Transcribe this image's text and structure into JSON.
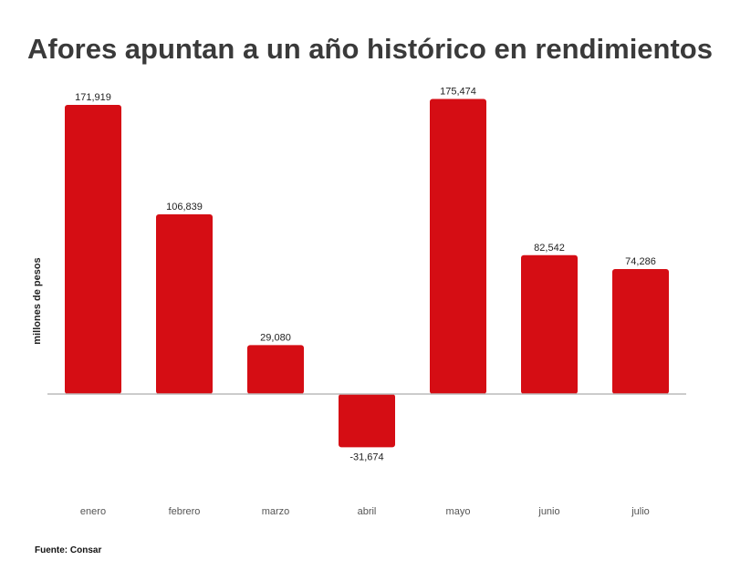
{
  "chart_data": {
    "type": "bar",
    "title": "Afores apuntan a un año histórico en rendimientos",
    "ylabel": "millones de pesos",
    "xlabel": "",
    "categories": [
      "enero",
      "febrero",
      "marzo",
      "abril",
      "mayo",
      "junio",
      "julio"
    ],
    "values": [
      171919,
      106839,
      29080,
      -31674,
      175474,
      82542,
      74286
    ],
    "value_labels": [
      "171,919",
      "106,839",
      "29,080",
      "-31,674",
      "175,474",
      "82,542",
      "74,286"
    ],
    "ylim": [
      -60000,
      180000
    ],
    "grid": false,
    "bar_color": "#d50d14",
    "source": "Fuente: Consar"
  }
}
